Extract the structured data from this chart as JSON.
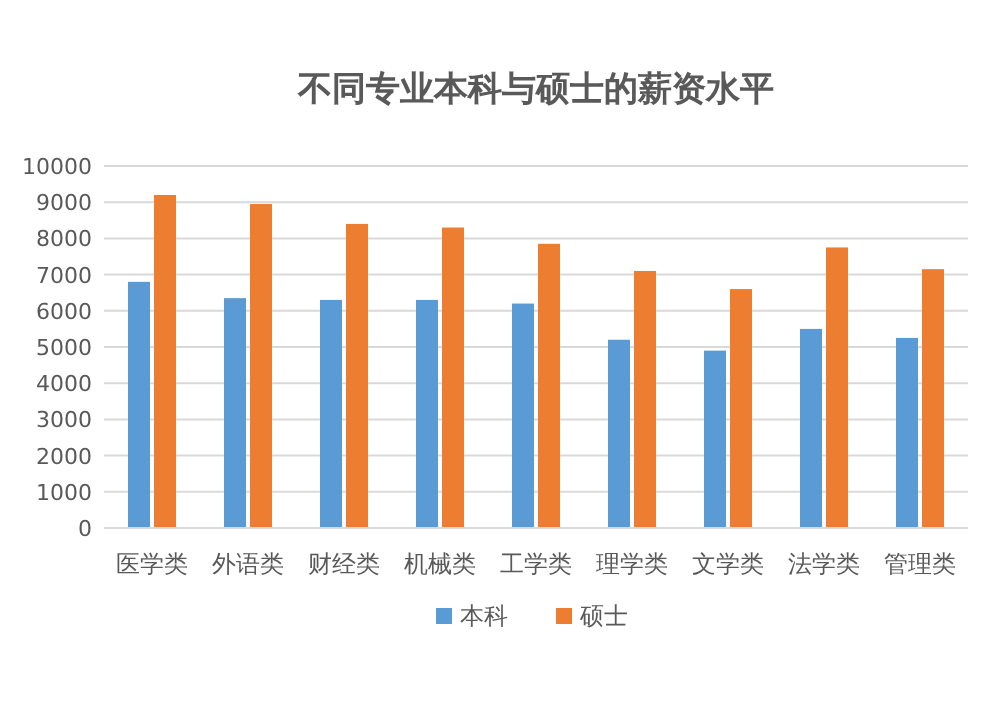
{
  "chart_data": {
    "type": "bar",
    "title": "不同专业本科与硕士的薪资水平",
    "categories": [
      "医学类",
      "外语类",
      "财经类",
      "机械类",
      "工学类",
      "理学类",
      "文学类",
      "法学类",
      "管理类"
    ],
    "series": [
      {
        "name": "本科",
        "color": "#5b9bd5",
        "values": [
          6800,
          6350,
          6300,
          6300,
          6200,
          5200,
          4900,
          5500,
          5250
        ]
      },
      {
        "name": "硕士",
        "color": "#ed7d31",
        "values": [
          9200,
          8950,
          8400,
          8300,
          7850,
          7100,
          6600,
          7750,
          7150
        ]
      }
    ],
    "ylim": [
      0,
      10000
    ],
    "yticks": [
      0,
      1000,
      2000,
      3000,
      4000,
      5000,
      6000,
      7000,
      8000,
      9000,
      10000
    ],
    "grid": "y",
    "legend": "bottom"
  }
}
